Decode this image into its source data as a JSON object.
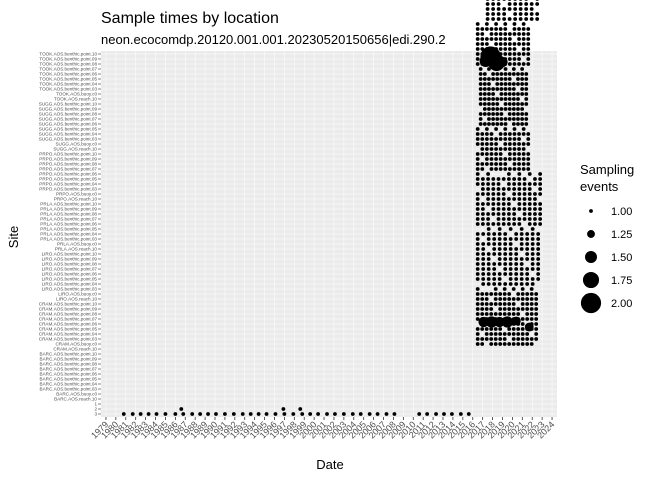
{
  "chart_data": {
    "type": "scatter",
    "title": "Sample times by location",
    "subtitle": "neon.ecocomdp.20120.001.001.20230520150656|edi.290.2",
    "xlabel": "Date",
    "ylabel": "Site",
    "xlim": [
      1979,
      2024
    ],
    "x_ticks": [
      1979,
      1980,
      1981,
      1982,
      1983,
      1984,
      1985,
      1986,
      1987,
      1988,
      1989,
      1990,
      1991,
      1992,
      1993,
      1994,
      1995,
      1996,
      1997,
      1998,
      1999,
      2000,
      2001,
      2002,
      2003,
      2004,
      2005,
      2006,
      2007,
      2008,
      2009,
      2010,
      2011,
      2012,
      2013,
      2014,
      2015,
      2016,
      2017,
      2018,
      2019,
      2020,
      2021,
      2022,
      2023,
      2024
    ],
    "grid": true,
    "legend": {
      "title": "Sampling events",
      "position": "right",
      "sizes": [
        1.0,
        1.25,
        1.5,
        1.75,
        2.0
      ],
      "labels": [
        "1.00",
        "1.25",
        "1.50",
        "1.75",
        "2.00"
      ]
    },
    "site_blocks": [
      {
        "prefix": "TOOK",
        "row_start": 79,
        "row_end": 86,
        "x_start": 2017.5,
        "x_end": 2022.5,
        "cols": 10
      },
      {
        "prefix": "SUGG",
        "row_start": 70,
        "row_end": 78,
        "x_start": 2016.5,
        "x_end": 2021.6,
        "cols": 12
      },
      {
        "prefix": "PRPO",
        "row_start": 58,
        "row_end": 69,
        "x_start": 2016.8,
        "x_end": 2021.4,
        "cols": 12
      },
      {
        "prefix": "PRLA",
        "row_start": 49,
        "row_end": 57,
        "x_start": 2016.5,
        "x_end": 2021.6,
        "cols": 12
      },
      {
        "prefix": "LIRO",
        "row_start": 38,
        "row_end": 48,
        "x_start": 2016.5,
        "x_end": 2022.8,
        "cols": 13
      },
      {
        "prefix": "CRAM",
        "row_start": 26,
        "row_end": 37,
        "x_start": 2016.5,
        "x_end": 2022.6,
        "cols": 12
      },
      {
        "prefix": "BARC",
        "row_start": 14,
        "row_end": 25,
        "x_start": 2016.5,
        "x_end": 2022.4,
        "cols": 14
      }
    ],
    "bottom_row_x": [
      1980.8,
      1981.7,
      1982.5,
      1983.3,
      1984.1,
      1985.0,
      1986.0,
      1986.8,
      1987.7,
      1988.5,
      1989.3,
      1990.1,
      1991.0,
      1991.9,
      1992.8,
      1993.6,
      1994.4,
      1995.2,
      1996.1,
      1997.0,
      1997.9,
      1998.8,
      1999.6,
      2000.4,
      2001.3,
      2002.1,
      2003.0,
      2003.9,
      2004.7,
      2005.6,
      2006.4,
      2007.3,
      2008.1,
      2010.6,
      2011.4,
      2012.3,
      2013.1,
      2013.9,
      2014.8,
      2015.6
    ],
    "bottom_extra_x": [
      1986.6,
      1996.9,
      1998.6
    ],
    "large_points": [
      {
        "x": 2017.8,
        "row": 71.5,
        "events": 2.0
      },
      {
        "x": 2018.4,
        "row": 70.3,
        "events": 1.8
      },
      {
        "x": 2017.3,
        "row": 70.6,
        "events": 1.5
      },
      {
        "x": 2019.0,
        "row": 70.4,
        "events": 1.4
      },
      {
        "x": 2017.9,
        "row": 18.4,
        "events": 1.45
      },
      {
        "x": 2018.7,
        "row": 18.4,
        "events": 1.4
      },
      {
        "x": 2019.5,
        "row": 18.4,
        "events": 1.45
      },
      {
        "x": 2017.1,
        "row": 18.4,
        "events": 1.4
      },
      {
        "x": 2020.4,
        "row": 18.6,
        "events": 1.3
      },
      {
        "x": 2021.7,
        "row": 17.4,
        "events": 1.3
      }
    ],
    "y_tick_labels": [
      "TOOK.AOS.benthic.point.10",
      "TOOK.AOS.benthic.point.09",
      "TOOK.AOS.benthic.point.08",
      "TOOK.AOS.benthic.point.07",
      "TOOK.AOS.benthic.point.06",
      "TOOK.AOS.benthic.point.05",
      "TOOK.AOS.benthic.point.04",
      "TOOK.AOS.benthic.point.03",
      "TOOK.AOS.buoy.c0",
      "TOOK.AOS.reach.10",
      "SUGG.AOS.benthic.point.10",
      "SUGG.AOS.benthic.point.09",
      "SUGG.AOS.benthic.point.08",
      "SUGG.AOS.benthic.point.07",
      "SUGG.AOS.benthic.point.06",
      "SUGG.AOS.benthic.point.05",
      "SUGG.AOS.benthic.point.04",
      "SUGG.AOS.benthic.point.03",
      "SUGG.AOS.buoy.c0",
      "SUGG.AOS.reach.10",
      "PRPO.AOS.benthic.point.10",
      "PRPO.AOS.benthic.point.09",
      "PRPO.AOS.benthic.point.08",
      "PRPO.AOS.benthic.point.07",
      "PRPO.AOS.benthic.point.06",
      "PRPO.AOS.benthic.point.05",
      "PRPO.AOS.benthic.point.04",
      "PRPO.AOS.benthic.point.03",
      "PRPO.AOS.buoy.c0",
      "PRPO.AOS.reach.10",
      "PRLA.AOS.benthic.point.10",
      "PRLA.AOS.benthic.point.09",
      "PRLA.AOS.benthic.point.08",
      "PRLA.AOS.benthic.point.07",
      "PRLA.AOS.benthic.point.06",
      "PRLA.AOS.benthic.point.05",
      "PRLA.AOS.benthic.point.04",
      "PRLA.AOS.benthic.point.03",
      "PRLA.AOS.buoy.c0",
      "PRLA.AOS.reach.10",
      "LIRO.AOS.benthic.point.10",
      "LIRO.AOS.benthic.point.09",
      "LIRO.AOS.benthic.point.08",
      "LIRO.AOS.benthic.point.07",
      "LIRO.AOS.benthic.point.06",
      "LIRO.AOS.benthic.point.05",
      "LIRO.AOS.benthic.point.04",
      "LIRO.AOS.benthic.point.03",
      "LIRO.AOS.buoy.c0",
      "LIRO.AOS.reach.10",
      "CRAM.AOS.benthic.point.10",
      "CRAM.AOS.benthic.point.09",
      "CRAM.AOS.benthic.point.08",
      "CRAM.AOS.benthic.point.07",
      "CRAM.AOS.benthic.point.06",
      "CRAM.AOS.benthic.point.05",
      "CRAM.AOS.benthic.point.04",
      "CRAM.AOS.benthic.point.03",
      "CRAM.AOS.buoy.c0",
      "CRAM.AOS.reach.10",
      "BARC.AOS.benthic.point.10",
      "BARC.AOS.benthic.point.09",
      "BARC.AOS.benthic.point.08",
      "BARC.AOS.benthic.point.07",
      "BARC.AOS.benthic.point.06",
      "BARC.AOS.benthic.point.05",
      "BARC.AOS.benthic.point.04",
      "BARC.AOS.benthic.point.03",
      "BARC.AOS.buoy.c0",
      "BARC.AOS.reach.10",
      "1",
      "2",
      "3"
    ]
  }
}
